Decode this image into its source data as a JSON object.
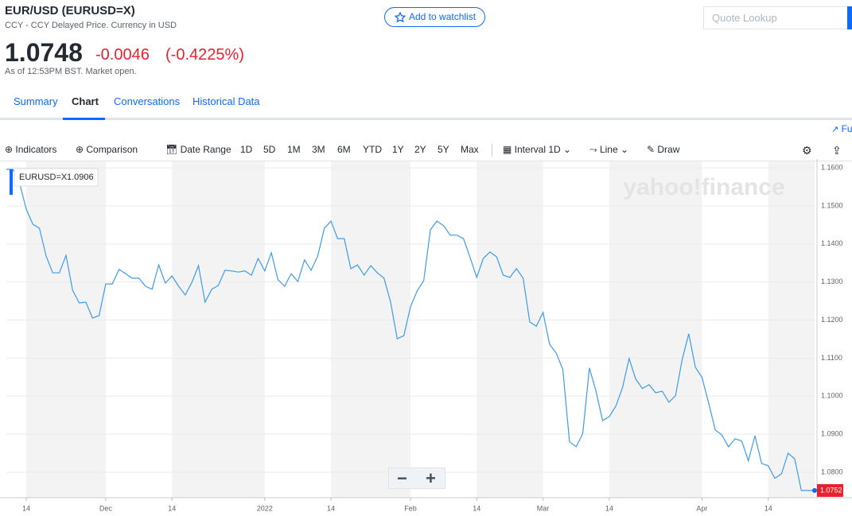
{
  "header": {
    "title": "EUR/USD (EURUSD=X)",
    "subtitle": "CCY - CCY Delayed Price. Currency in USD",
    "price": 1.0748,
    "change": -0.0046,
    "change_pct": "(-0.4225%)",
    "as_of": "As of 12:53PM BST. Market open.",
    "watchlist": "Add to watchlist",
    "search_placeholder": "Quote Lookup"
  },
  "tabs": [
    "Summary",
    "Chart",
    "Conversations",
    "Historical Data"
  ],
  "toolbar": {
    "full_screen": "Full screen",
    "indicators": "Indicators",
    "comparison": "Comparison",
    "date_range": "Date Range",
    "ranges": [
      "1D",
      "5D",
      "1M",
      "3M",
      "6M",
      "YTD",
      "1Y",
      "2Y",
      "5Y",
      "Max"
    ],
    "interval": "Interval",
    "interval_value": "1D",
    "chart_style": "Line",
    "draw": "Draw"
  },
  "chart_data": {
    "type": "line",
    "watermark": "yahoo!finance",
    "tooltip": {
      "symbol": "EURUSD=X",
      "value": 1.0906
    },
    "color": "#3d9be9",
    "last_color": "#e8212e",
    "categories": [
      null,
      null,
      null,
      "14",
      null,
      null,
      null,
      null,
      null,
      null,
      null,
      null,
      null,
      null,
      null,
      "Dec",
      null,
      null,
      null,
      null,
      null,
      null,
      null,
      null,
      null,
      "14",
      null,
      null,
      null,
      null,
      null,
      null,
      null,
      null,
      null,
      null,
      null,
      null,
      null,
      "2022",
      null,
      null,
      null,
      null,
      null,
      null,
      null,
      null,
      null,
      "14",
      null,
      null,
      null,
      null,
      null,
      null,
      null,
      null,
      null,
      null,
      null,
      "Feb",
      null,
      null,
      null,
      null,
      null,
      null,
      null,
      null,
      null,
      "14",
      null,
      null,
      null,
      null,
      null,
      null,
      null,
      null,
      null,
      "Mar",
      null,
      null,
      null,
      null,
      null,
      null,
      null,
      null,
      null,
      "14",
      null,
      null,
      null,
      null,
      null,
      null,
      null,
      null,
      null,
      null,
      null,
      null,
      null,
      "Apr",
      null,
      null,
      null,
      null,
      null,
      null,
      null,
      null,
      null,
      "14",
      null,
      null,
      null,
      null,
      null,
      null,
      null
    ],
    "values": [
      1.1596,
      1.1596,
      1.156,
      1.1491,
      1.1452,
      1.1441,
      1.1368,
      1.1324,
      1.1324,
      1.137,
      1.1278,
      1.1245,
      1.1247,
      1.1205,
      1.1212,
      1.1295,
      1.1295,
      1.1333,
      1.1322,
      1.131,
      1.131,
      1.1289,
      1.1281,
      1.1345,
      1.1297,
      1.1316,
      1.1289,
      1.1266,
      1.1299,
      1.1343,
      1.1247,
      1.1281,
      1.1291,
      1.1331,
      1.1329,
      1.1326,
      1.1329,
      1.1318,
      1.1362,
      1.1329,
      1.1377,
      1.1306,
      1.1289,
      1.1322,
      1.1301,
      1.1358,
      1.1331,
      1.1368,
      1.1441,
      1.146,
      1.1414,
      1.1414,
      1.1335,
      1.1345,
      1.1318,
      1.1343,
      1.1324,
      1.131,
      1.1247,
      1.1151,
      1.1159,
      1.1235,
      1.1276,
      1.1304,
      1.1437,
      1.146,
      1.1448,
      1.1423,
      1.1423,
      1.1414,
      1.1364,
      1.1312,
      1.1362,
      1.1379,
      1.1366,
      1.1318,
      1.1312,
      1.1335,
      1.131,
      1.1195,
      1.1184,
      1.122,
      1.1136,
      1.1113,
      1.107,
      1.088,
      1.0867,
      1.0901,
      1.1074,
      1.1013,
      1.0936,
      1.0946,
      1.0974,
      1.1022,
      1.1099,
      1.1045,
      1.102,
      1.103,
      1.1009,
      1.1013,
      1.0984,
      1.1001,
      1.1095,
      1.1164,
      1.1076,
      1.1049,
      1.0982,
      1.0911,
      1.0898,
      1.0867,
      1.0888,
      1.0882,
      1.083,
      1.0896,
      1.0823,
      1.0817,
      1.0784,
      1.0796,
      1.085,
      1.0835,
      1.0752,
      1.0752,
      1.0752
    ],
    "ylim": [
      1.0733,
      1.1617
    ],
    "yticks": [
      {
        "value": 1.16,
        "label": "1.1600"
      },
      {
        "value": 1.15,
        "label": "1.1500"
      },
      {
        "value": 1.14,
        "label": "1.1400"
      },
      {
        "value": 1.13,
        "label": "1.1300"
      },
      {
        "value": 1.12,
        "label": "1.1200"
      },
      {
        "value": 1.11,
        "label": "1.1100"
      },
      {
        "value": 1.1,
        "label": "1.1000"
      },
      {
        "value": 1.09,
        "label": "1.0900"
      },
      {
        "value": 1.08,
        "label": "1.0800"
      }
    ],
    "grid": true
  }
}
